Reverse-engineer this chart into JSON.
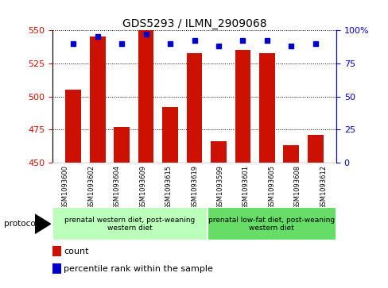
{
  "title": "GDS5293 / ILMN_2909068",
  "samples": [
    "GSM1093600",
    "GSM1093602",
    "GSM1093604",
    "GSM1093609",
    "GSM1093615",
    "GSM1093619",
    "GSM1093599",
    "GSM1093601",
    "GSM1093605",
    "GSM1093608",
    "GSM1093612"
  ],
  "counts": [
    505,
    545,
    477,
    550,
    492,
    533,
    466,
    535,
    533,
    463,
    471
  ],
  "percentiles": [
    90,
    95,
    90,
    97,
    90,
    92,
    88,
    92,
    92,
    88,
    90
  ],
  "ylim_left": [
    450,
    550
  ],
  "ylim_right": [
    0,
    100
  ],
  "yticks_left": [
    450,
    475,
    500,
    525,
    550
  ],
  "yticks_right": [
    0,
    25,
    50,
    75,
    100
  ],
  "bar_color": "#CC1100",
  "dot_color": "#0000CC",
  "group1_label": "prenatal western diet, post-weaning\nwestern diet",
  "group2_label": "prenatal low-fat diet, post-weaning\nwestern diet",
  "group1_indices": [
    0,
    1,
    2,
    3,
    4,
    5
  ],
  "group2_indices": [
    6,
    7,
    8,
    9,
    10
  ],
  "group1_color": "#BBFFBB",
  "group2_color": "#66DD66",
  "protocol_label": "protocol",
  "legend_count_label": "count",
  "legend_pct_label": "percentile rank within the sample",
  "sample_bg_color": "#CCCCCC",
  "sample_border_color": "#AAAAAA"
}
